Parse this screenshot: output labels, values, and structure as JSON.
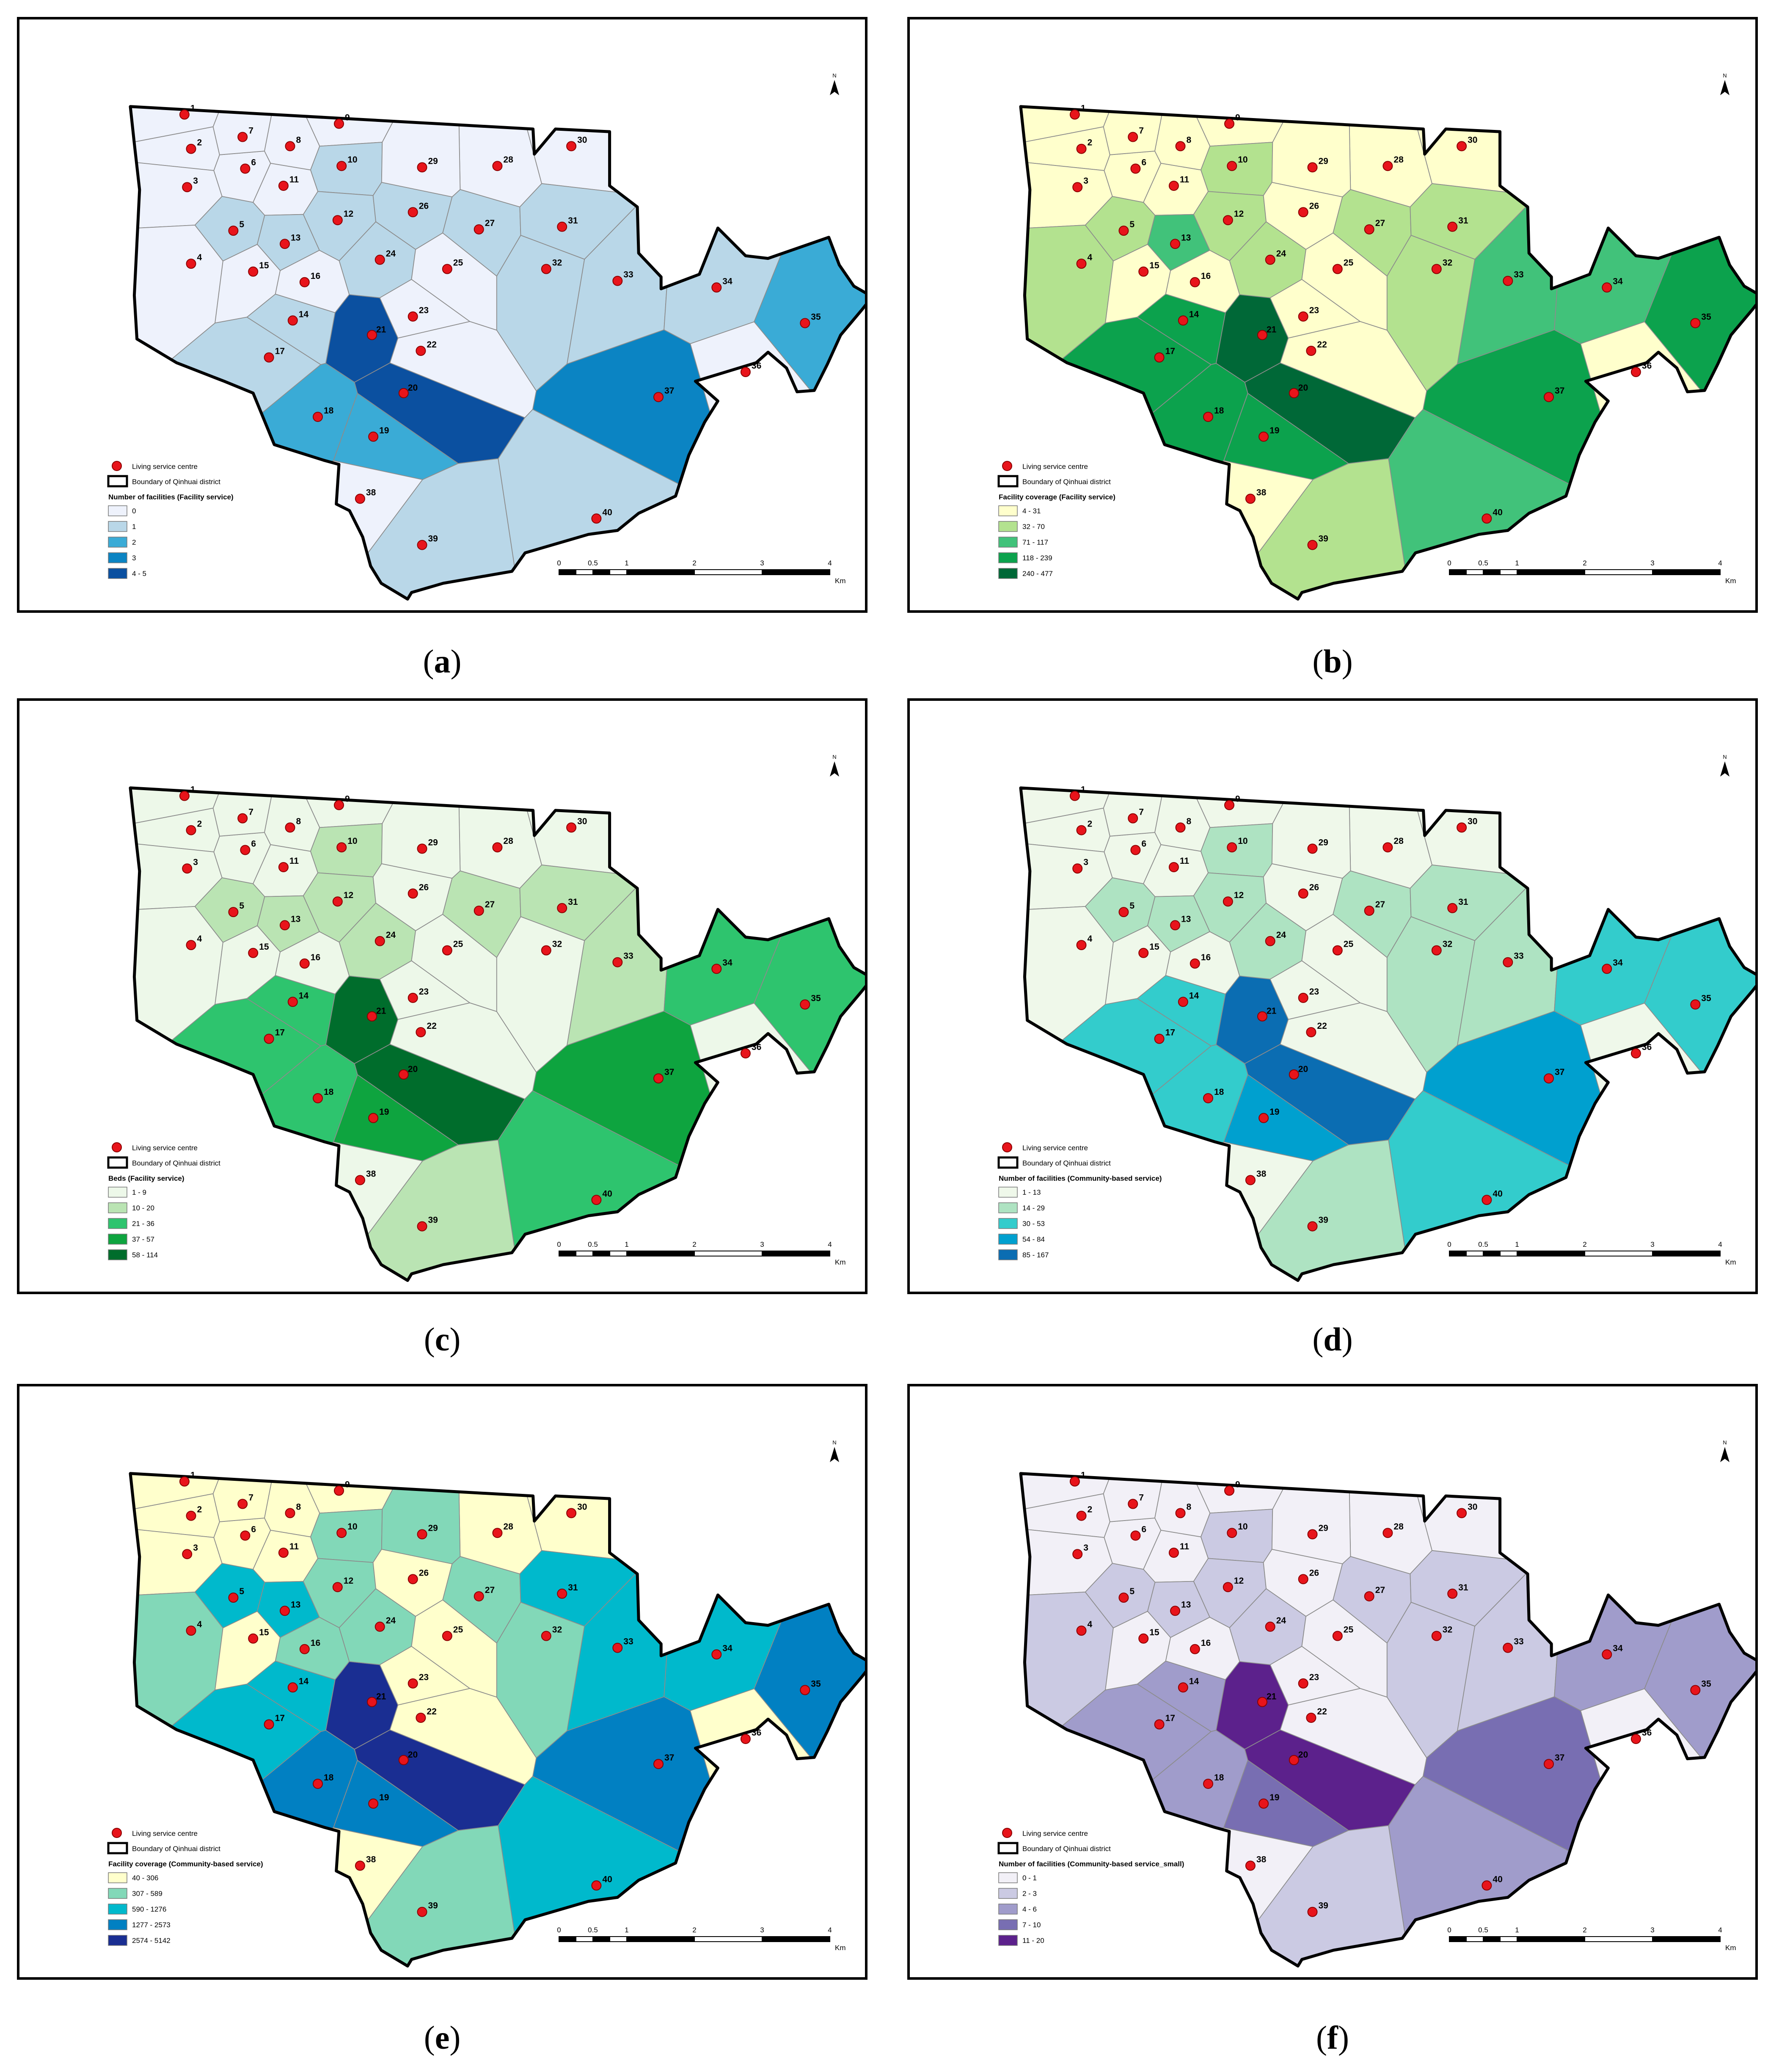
{
  "legend_common": {
    "centre_label": "Living service centre",
    "boundary_label": "Boundary of Qinhuai district"
  },
  "scale_bar": {
    "ticks": [
      "0",
      "0.5",
      "1",
      "2",
      "3",
      "4"
    ],
    "unit": "Km"
  },
  "north_label": "N",
  "centres": [
    "1",
    "2",
    "3",
    "4",
    "5",
    "6",
    "7",
    "8",
    "9",
    "10",
    "11",
    "12",
    "13",
    "14",
    "15",
    "16",
    "17",
    "18",
    "19",
    "20",
    "21",
    "22",
    "23",
    "24",
    "25",
    "26",
    "27",
    "28",
    "29",
    "30",
    "31",
    "32",
    "33",
    "34",
    "35",
    "36",
    "37",
    "38",
    "39",
    "40"
  ],
  "panels": [
    {
      "caption": "a",
      "legend_title": "Number of facilities (Facility service)",
      "classes": [
        "0",
        "1",
        "2",
        "3",
        "4 - 5"
      ],
      "colors": [
        "#eff3ff",
        "#bdd7e7",
        "#6baed6",
        "#2171b5",
        "#08519c"
      ],
      "display_colors": [
        "#eef2fc",
        "#b9d7e8",
        "#3aabd6",
        "#0b84c3",
        "#0b50a0"
      ],
      "region_class": [
        0,
        0,
        0,
        0,
        1,
        0,
        0,
        0,
        0,
        1,
        0,
        1,
        1,
        1,
        0,
        0,
        1,
        2,
        2,
        4,
        4,
        0,
        0,
        1,
        0,
        1,
        1,
        0,
        0,
        0,
        1,
        1,
        1,
        1,
        2,
        0,
        3,
        0,
        1,
        1
      ]
    },
    {
      "caption": "b",
      "legend_title": "Facility coverage (Facility service)",
      "classes": [
        "4 - 31",
        "32 - 70",
        "71 - 117",
        "118 - 239",
        "240 - 477"
      ],
      "colors": [
        "#ffffcc",
        "#b3e28f",
        "#41c27a",
        "#0ca24d",
        "#006837"
      ],
      "display_colors": [
        "#ffffcc",
        "#b3e28f",
        "#41c27a",
        "#0ca24d",
        "#006837"
      ],
      "region_class": [
        0,
        0,
        0,
        1,
        1,
        0,
        0,
        0,
        0,
        1,
        0,
        1,
        2,
        3,
        0,
        0,
        3,
        3,
        3,
        4,
        4,
        0,
        0,
        1,
        0,
        0,
        1,
        0,
        0,
        0,
        1,
        1,
        2,
        2,
        3,
        0,
        3,
        0,
        1,
        2
      ]
    },
    {
      "caption": "c",
      "legend_title": "Beds (Facility service)",
      "classes": [
        "1 - 9",
        "10 - 20",
        "21 - 36",
        "37 - 57",
        "58 - 114"
      ],
      "colors": [
        "#edf8e9",
        "#bae4b3",
        "#52c66e",
        "#169c43",
        "#006d2c"
      ],
      "display_colors": [
        "#edf8e9",
        "#bae4b3",
        "#2ec46e",
        "#0ea43f",
        "#006d2c"
      ],
      "region_class": [
        0,
        0,
        0,
        0,
        1,
        0,
        0,
        0,
        0,
        1,
        0,
        1,
        1,
        2,
        0,
        0,
        2,
        2,
        3,
        4,
        4,
        0,
        0,
        1,
        0,
        0,
        1,
        0,
        0,
        0,
        1,
        0,
        1,
        2,
        2,
        0,
        3,
        0,
        1,
        2
      ]
    },
    {
      "caption": "d",
      "legend_title": "Number of facilities (Community-based service)",
      "classes": [
        "1 - 13",
        "14 - 29",
        "30 - 53",
        "54 - 84",
        "85 - 167"
      ],
      "colors": [
        "#f0f9e8",
        "#bae4bc",
        "#7bccc4",
        "#2b8cbe",
        "#0868ac"
      ],
      "display_colors": [
        "#eff8ea",
        "#aee3c2",
        "#33cccc",
        "#00a0cf",
        "#0b6db2"
      ],
      "region_class": [
        0,
        0,
        0,
        0,
        1,
        0,
        0,
        0,
        0,
        1,
        0,
        1,
        1,
        2,
        0,
        0,
        2,
        2,
        3,
        4,
        4,
        0,
        0,
        1,
        0,
        0,
        1,
        0,
        0,
        0,
        1,
        1,
        1,
        2,
        2,
        0,
        3,
        0,
        1,
        2
      ]
    },
    {
      "caption": "e",
      "legend_title": "Facility coverage (Community-based service)",
      "classes": [
        "40 - 306",
        "307 - 589",
        "590 - 1276",
        "1277 - 2573",
        "2574 - 5142"
      ],
      "colors": [
        "#ffffcc",
        "#7fcdbb",
        "#1dbacb",
        "#0a80bd",
        "#1a2f91"
      ],
      "display_colors": [
        "#ffffcc",
        "#82d8b8",
        "#00b9cc",
        "#0180c2",
        "#1a2e92"
      ],
      "region_class": [
        0,
        0,
        0,
        1,
        2,
        0,
        0,
        0,
        0,
        1,
        0,
        1,
        2,
        2,
        0,
        1,
        2,
        3,
        3,
        4,
        4,
        0,
        0,
        1,
        0,
        0,
        1,
        0,
        1,
        0,
        2,
        1,
        2,
        2,
        3,
        0,
        3,
        0,
        1,
        2
      ]
    },
    {
      "caption": "f",
      "legend_title": "Number of facilities (Community-based service_small)",
      "classes": [
        "0 - 1",
        "2 - 3",
        "4 - 6",
        "7 - 10",
        "11 - 20"
      ],
      "colors": [
        "#f2f0f7",
        "#cbc9e2",
        "#9e9ac8",
        "#756bb1",
        "#54278f"
      ],
      "display_colors": [
        "#f2f0f7",
        "#cbcae3",
        "#a09ccb",
        "#786eb2",
        "#5c218c"
      ],
      "region_class": [
        0,
        0,
        0,
        1,
        1,
        0,
        0,
        0,
        0,
        1,
        0,
        1,
        1,
        2,
        0,
        0,
        2,
        2,
        3,
        4,
        4,
        0,
        0,
        1,
        0,
        0,
        1,
        0,
        0,
        0,
        1,
        1,
        1,
        2,
        2,
        0,
        3,
        0,
        1,
        2
      ]
    }
  ]
}
